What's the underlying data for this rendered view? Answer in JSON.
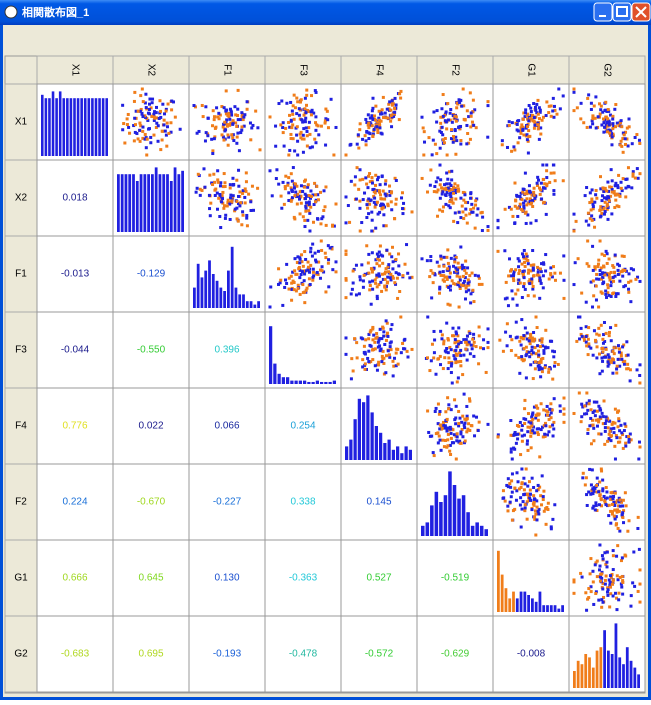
{
  "window": {
    "title": "相関散布図_1"
  },
  "matrix": {
    "variables": [
      "X1",
      "X2",
      "F1",
      "F3",
      "F4",
      "F2",
      "G1",
      "G2"
    ],
    "correlations": [
      [],
      [
        {
          "text": "0.018",
          "color": "#1a1a8c"
        }
      ],
      [
        {
          "text": "-0.013",
          "color": "#1a1a8c"
        },
        {
          "text": "-0.129",
          "color": "#1a4fd0"
        }
      ],
      [
        {
          "text": "-0.044",
          "color": "#1a1a8c"
        },
        {
          "text": "-0.550",
          "color": "#33cc33"
        },
        {
          "text": "0.396",
          "color": "#22c8c8"
        }
      ],
      [
        {
          "text": "0.776",
          "color": "#e0e020"
        },
        {
          "text": "0.022",
          "color": "#1a1a8c"
        },
        {
          "text": "0.066",
          "color": "#1a2aa0"
        },
        {
          "text": "0.254",
          "color": "#1aa0d8"
        }
      ],
      [
        {
          "text": "0.224",
          "color": "#1a70d8"
        },
        {
          "text": "-0.670",
          "color": "#a0d820"
        },
        {
          "text": "-0.227",
          "color": "#1a70d8"
        },
        {
          "text": "0.338",
          "color": "#22c8d8"
        },
        {
          "text": "0.145",
          "color": "#1a4fd0"
        }
      ],
      [
        {
          "text": "0.666",
          "color": "#a0d820"
        },
        {
          "text": "0.645",
          "color": "#80d820"
        },
        {
          "text": "0.130",
          "color": "#1a4fd0"
        },
        {
          "text": "-0.363",
          "color": "#22c8d8"
        },
        {
          "text": "0.527",
          "color": "#33cc33"
        },
        {
          "text": "-0.519",
          "color": "#33cc33"
        }
      ],
      [
        {
          "text": "-0.683",
          "color": "#b0d820"
        },
        {
          "text": "0.695",
          "color": "#b0d820"
        },
        {
          "text": "-0.193",
          "color": "#1a60d8"
        },
        {
          "text": "-0.478",
          "color": "#22b8a0"
        },
        {
          "text": "-0.572",
          "color": "#33cc33"
        },
        {
          "text": "-0.629",
          "color": "#44cc33"
        },
        {
          "text": "-0.008",
          "color": "#1a1a8c"
        }
      ]
    ],
    "histograms": [
      {
        "values": [
          0.9,
          0.85,
          0.85,
          0.95,
          0.85,
          0.95,
          0.85,
          0.85,
          0.85,
          0.85,
          0.85,
          0.85,
          0.85,
          0.85,
          0.85,
          0.85,
          0.85,
          0.85,
          0.85
        ],
        "colors": [
          "#2020e0"
        ]
      },
      {
        "values": [
          0.85,
          0.85,
          0.85,
          0.85,
          0.85,
          0.75,
          0.85,
          0.85,
          0.85,
          0.85,
          0.95,
          0.85,
          0.85,
          0.85,
          0.75,
          0.95,
          0.85,
          0.9
        ],
        "colors": [
          "#2020e0"
        ]
      },
      {
        "values": [
          0.3,
          0.65,
          0.45,
          0.55,
          0.7,
          0.5,
          0.4,
          0.3,
          0.25,
          0.55,
          0.9,
          0.3,
          0.2,
          0.2,
          0.1,
          0.1,
          0.05,
          0.1
        ],
        "colors": [
          "#2020e0"
        ]
      },
      {
        "values": [
          0.85,
          0.3,
          0.15,
          0.1,
          0.1,
          0.05,
          0.05,
          0.05,
          0.05,
          0.03,
          0.03,
          0.05,
          0.03,
          0.03,
          0.03,
          0.05
        ],
        "colors": [
          "#2020e0"
        ]
      },
      {
        "values": [
          0.2,
          0.3,
          0.6,
          0.9,
          0.85,
          0.95,
          0.7,
          0.5,
          0.4,
          0.25,
          0.3,
          0.15,
          0.2,
          0.1,
          0.2,
          0.15
        ],
        "colors": [
          "#2020e0"
        ]
      },
      {
        "values": [
          0.15,
          0.2,
          0.45,
          0.65,
          0.5,
          0.6,
          0.95,
          0.75,
          0.55,
          0.6,
          0.35,
          0.15,
          0.2,
          0.15,
          0.1
        ],
        "colors": [
          "#2020e0"
        ]
      },
      {
        "values": [
          0.9,
          0.55,
          0.35,
          0.2,
          0.3,
          0.2,
          0.3,
          0.3,
          0.25,
          0.2,
          0.15,
          0.3,
          0.1,
          0.1,
          0.1,
          0.1,
          0.05,
          0.1
        ],
        "colors": [
          "#f07d1a",
          "#f07d1a",
          "#f07d1a",
          "#f07d1a",
          "#f07d1a",
          "#2020e0"
        ]
      },
      {
        "values": [
          0.25,
          0.4,
          0.35,
          0.5,
          0.45,
          0.3,
          0.55,
          0.6,
          0.85,
          0.55,
          0.5,
          0.95,
          0.45,
          0.35,
          0.6,
          0.4,
          0.3,
          0.2
        ],
        "colors": [
          "#f07d1a",
          "#f07d1a",
          "#f07d1a",
          "#f07d1a",
          "#f07d1a",
          "#f07d1a",
          "#f07d1a",
          "#f07d1a",
          "#2020e0"
        ]
      }
    ]
  }
}
